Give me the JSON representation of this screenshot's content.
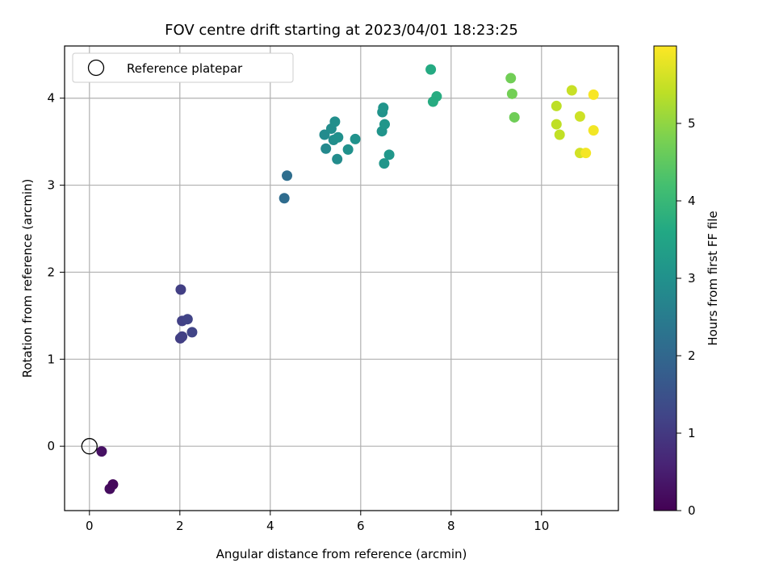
{
  "chart_data": {
    "type": "scatter",
    "title": "FOV centre drift starting at 2023/04/01 18:23:25",
    "xlabel": "Angular distance from reference (arcmin)",
    "ylabel": "Rotation from reference (arcmin)",
    "xlim": [
      -0.55,
      11.7
    ],
    "ylim": [
      -0.74,
      4.6
    ],
    "xticks": [
      0,
      2,
      4,
      6,
      8,
      10
    ],
    "yticks": [
      0,
      1,
      2,
      3,
      4
    ],
    "grid": true,
    "legend": {
      "placement": "top-left",
      "entries": [
        "Reference platepar"
      ]
    },
    "reference_point": {
      "name": "Reference platepar",
      "x": 0,
      "y": 0
    },
    "colorbar": {
      "label": "Hours from first FF file",
      "range": [
        0,
        6.0
      ],
      "ticks": [
        0,
        1,
        2,
        3,
        4,
        5
      ],
      "colormap": "viridis"
    },
    "points": [
      {
        "x": 0.27,
        "y": -0.06,
        "c": 0.28
      },
      {
        "x": 0.45,
        "y": -0.49,
        "c": 0.18
      },
      {
        "x": 0.52,
        "y": -0.44,
        "c": 0.12
      },
      {
        "x": 2.02,
        "y": 1.8,
        "c": 1.1
      },
      {
        "x": 2.05,
        "y": 1.44,
        "c": 1.15
      },
      {
        "x": 2.17,
        "y": 1.46,
        "c": 1.2
      },
      {
        "x": 2.01,
        "y": 1.24,
        "c": 1.08
      },
      {
        "x": 2.05,
        "y": 1.26,
        "c": 1.13
      },
      {
        "x": 2.27,
        "y": 1.31,
        "c": 1.22
      },
      {
        "x": 4.31,
        "y": 2.85,
        "c": 2.1
      },
      {
        "x": 4.37,
        "y": 3.11,
        "c": 2.15
      },
      {
        "x": 5.2,
        "y": 3.58,
        "c": 2.85
      },
      {
        "x": 5.23,
        "y": 3.42,
        "c": 2.8
      },
      {
        "x": 5.35,
        "y": 3.65,
        "c": 2.9
      },
      {
        "x": 5.43,
        "y": 3.73,
        "c": 2.95
      },
      {
        "x": 5.4,
        "y": 3.52,
        "c": 2.92
      },
      {
        "x": 5.5,
        "y": 3.55,
        "c": 2.98
      },
      {
        "x": 5.48,
        "y": 3.3,
        "c": 2.88
      },
      {
        "x": 5.72,
        "y": 3.41,
        "c": 3.0
      },
      {
        "x": 5.88,
        "y": 3.53,
        "c": 3.03
      },
      {
        "x": 6.48,
        "y": 3.84,
        "c": 3.05
      },
      {
        "x": 6.5,
        "y": 3.89,
        "c": 3.1
      },
      {
        "x": 6.47,
        "y": 3.62,
        "c": 3.08
      },
      {
        "x": 6.53,
        "y": 3.7,
        "c": 3.12
      },
      {
        "x": 6.52,
        "y": 3.25,
        "c": 3.14
      },
      {
        "x": 6.63,
        "y": 3.35,
        "c": 3.16
      },
      {
        "x": 7.55,
        "y": 4.33,
        "c": 3.65
      },
      {
        "x": 7.68,
        "y": 4.02,
        "c": 3.7
      },
      {
        "x": 7.6,
        "y": 3.96,
        "c": 3.68
      },
      {
        "x": 9.32,
        "y": 4.23,
        "c": 4.7
      },
      {
        "x": 9.35,
        "y": 4.05,
        "c": 4.72
      },
      {
        "x": 9.4,
        "y": 3.78,
        "c": 4.68
      },
      {
        "x": 10.33,
        "y": 3.91,
        "c": 5.4
      },
      {
        "x": 10.33,
        "y": 3.7,
        "c": 5.42
      },
      {
        "x": 10.4,
        "y": 3.58,
        "c": 5.44
      },
      {
        "x": 10.67,
        "y": 4.09,
        "c": 5.5
      },
      {
        "x": 10.85,
        "y": 3.79,
        "c": 5.55
      },
      {
        "x": 10.85,
        "y": 3.37,
        "c": 5.6
      },
      {
        "x": 10.98,
        "y": 3.37,
        "c": 5.92
      },
      {
        "x": 11.15,
        "y": 3.63,
        "c": 5.9
      },
      {
        "x": 11.15,
        "y": 4.04,
        "c": 5.95
      }
    ]
  }
}
